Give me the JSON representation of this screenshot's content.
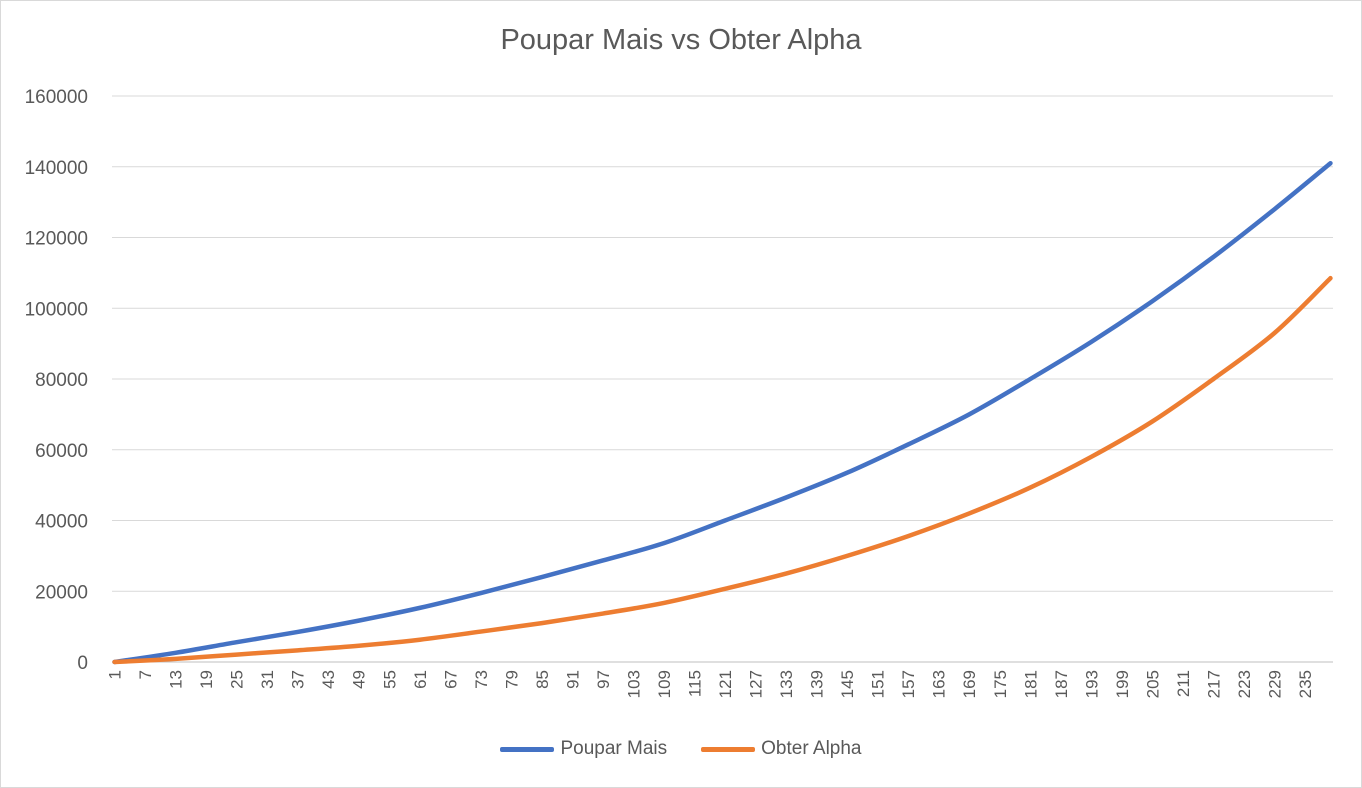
{
  "chart_data": {
    "type": "line",
    "title": "Poupar Mais vs Obter Alpha",
    "xlabel": "",
    "ylabel": "",
    "x_start": 1,
    "x_end": 240,
    "x_tick_labels": [
      "1",
      "7",
      "13",
      "19",
      "25",
      "31",
      "37",
      "43",
      "49",
      "55",
      "61",
      "67",
      "73",
      "79",
      "85",
      "91",
      "97",
      "103",
      "109",
      "115",
      "121",
      "127",
      "133",
      "139",
      "145",
      "151",
      "157",
      "163",
      "169",
      "175",
      "181",
      "187",
      "193",
      "199",
      "205",
      "211",
      "217",
      "223",
      "229",
      "235"
    ],
    "ylim": [
      0,
      160000
    ],
    "y_ticks": [
      "0",
      "20000",
      "40000",
      "60000",
      "80000",
      "100000",
      "120000",
      "140000",
      "160000"
    ],
    "grid": true,
    "legend_position": "bottom",
    "series": [
      {
        "name": "Poupar Mais",
        "color": "#4472c4",
        "points": [
          [
            1,
            0
          ],
          [
            13,
            2600
          ],
          [
            25,
            5600
          ],
          [
            37,
            8500
          ],
          [
            49,
            11700
          ],
          [
            61,
            15300
          ],
          [
            73,
            19500
          ],
          [
            85,
            24000
          ],
          [
            97,
            28700
          ],
          [
            109,
            33600
          ],
          [
            121,
            40000
          ],
          [
            133,
            46500
          ],
          [
            145,
            53500
          ],
          [
            157,
            61500
          ],
          [
            169,
            70000
          ],
          [
            181,
            80000
          ],
          [
            193,
            90500
          ],
          [
            205,
            102000
          ],
          [
            217,
            114500
          ],
          [
            229,
            128000
          ],
          [
            240,
            141000
          ]
        ]
      },
      {
        "name": "Obter Alpha",
        "color": "#ed7d31",
        "points": [
          [
            1,
            0
          ],
          [
            13,
            900
          ],
          [
            25,
            2100
          ],
          [
            37,
            3300
          ],
          [
            49,
            4600
          ],
          [
            61,
            6300
          ],
          [
            73,
            8600
          ],
          [
            85,
            11000
          ],
          [
            97,
            13700
          ],
          [
            109,
            16700
          ],
          [
            121,
            20700
          ],
          [
            133,
            25000
          ],
          [
            145,
            30000
          ],
          [
            157,
            35600
          ],
          [
            169,
            42000
          ],
          [
            181,
            49300
          ],
          [
            193,
            58000
          ],
          [
            205,
            68000
          ],
          [
            217,
            80000
          ],
          [
            229,
            93000
          ],
          [
            240,
            108500
          ]
        ]
      }
    ]
  }
}
